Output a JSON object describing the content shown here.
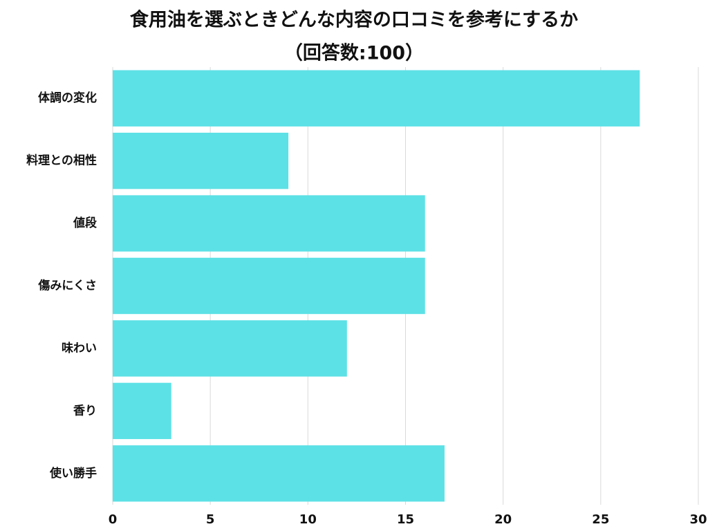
{
  "chart_data": {
    "type": "bar",
    "orientation": "horizontal",
    "title": "食用油を選ぶときどんな内容の口コミを参考にするか",
    "subtitle": "（回答数:100）",
    "categories": [
      "体調の変化",
      "料理との相性",
      "値段",
      "傷みにくさ",
      "味わい",
      "香り",
      "使い勝手"
    ],
    "values": [
      27,
      9,
      16,
      16,
      12,
      3,
      17
    ],
    "color": "#5ce1e6",
    "xlim": [
      0,
      30
    ],
    "xticks": [
      0,
      5,
      10,
      15,
      20,
      25,
      30
    ],
    "grid": true
  }
}
